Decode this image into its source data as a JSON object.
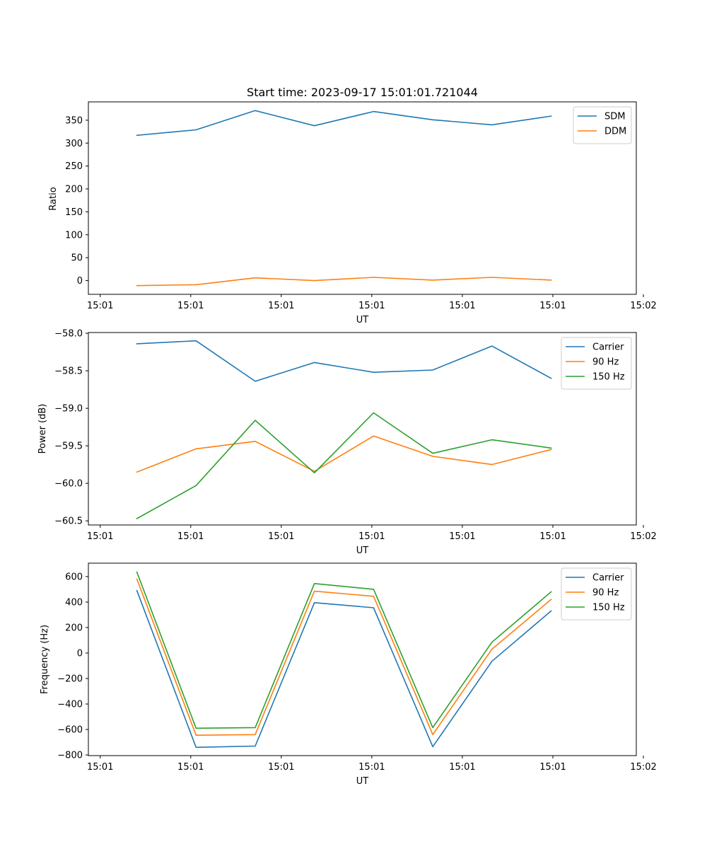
{
  "chart_data": [
    {
      "type": "line",
      "title": "Start time: 2023-09-17 15:01:01.721044",
      "xlabel": "UT",
      "ylabel": "Ratio",
      "x": [
        1,
        2,
        3,
        4,
        5,
        6,
        7,
        8
      ],
      "xlim": [
        0.18,
        9.44
      ],
      "xticks": [
        0.38,
        1.91,
        3.44,
        4.97,
        6.5,
        8.03,
        9.56
      ],
      "xtick_labels": [
        "15:01",
        "15:01",
        "15:01",
        "15:01",
        "15:01",
        "15:01",
        "15:02"
      ],
      "ylim": [
        -30,
        390
      ],
      "yticks": [
        0,
        50,
        100,
        150,
        200,
        250,
        300,
        350
      ],
      "ytick_labels": [
        "0",
        "50",
        "100",
        "150",
        "200",
        "250",
        "300",
        "350"
      ],
      "legend": "top-right",
      "series": [
        {
          "name": "SDM",
          "color": "#1f77b4",
          "values": [
            317,
            329,
            371,
            338,
            369,
            351,
            340,
            359
          ]
        },
        {
          "name": "DDM",
          "color": "#ff7f0e",
          "values": [
            -11,
            -9,
            6,
            0,
            7,
            1,
            7,
            1
          ]
        }
      ]
    },
    {
      "type": "line",
      "title": "",
      "xlabel": "UT",
      "ylabel": "Power (dB)",
      "x": [
        1,
        2,
        3,
        4,
        5,
        6,
        7,
        8
      ],
      "xlim": [
        0.18,
        9.44
      ],
      "xticks": [
        0.38,
        1.91,
        3.44,
        4.97,
        6.5,
        8.03,
        9.56
      ],
      "xtick_labels": [
        "15:01",
        "15:01",
        "15:01",
        "15:01",
        "15:01",
        "15:01",
        "15:02"
      ],
      "ylim": [
        -60.555,
        -57.99
      ],
      "yticks": [
        -60.5,
        -60.0,
        -59.5,
        -59.0,
        -58.5,
        -58.0
      ],
      "ytick_labels": [
        "−60.5",
        "−60.0",
        "−59.5",
        "−59.0",
        "−58.5",
        "−58.0"
      ],
      "legend": "top-right",
      "series": [
        {
          "name": "Carrier",
          "color": "#1f77b4",
          "values": [
            -58.14,
            -58.1,
            -58.64,
            -58.39,
            -58.52,
            -58.49,
            -58.17,
            -58.6
          ]
        },
        {
          "name": "90 Hz",
          "color": "#ff7f0e",
          "values": [
            -59.85,
            -59.54,
            -59.44,
            -59.84,
            -59.37,
            -59.64,
            -59.75,
            -59.55
          ]
        },
        {
          "name": "150 Hz",
          "color": "#2ca02c",
          "values": [
            -60.47,
            -60.03,
            -59.16,
            -59.86,
            -59.06,
            -59.6,
            -59.42,
            -59.53
          ]
        }
      ]
    },
    {
      "type": "line",
      "title": "",
      "xlabel": "UT",
      "ylabel": "Frequency (Hz)",
      "x": [
        1,
        2,
        3,
        4,
        5,
        6,
        7,
        8
      ],
      "xlim": [
        0.18,
        9.44
      ],
      "xticks": [
        0.38,
        1.91,
        3.44,
        4.97,
        6.5,
        8.03,
        9.56
      ],
      "xtick_labels": [
        "15:01",
        "15:01",
        "15:01",
        "15:01",
        "15:01",
        "15:01",
        "15:02"
      ],
      "ylim": [
        -805,
        705
      ],
      "yticks": [
        -800,
        -600,
        -400,
        -200,
        0,
        200,
        400,
        600
      ],
      "ytick_labels": [
        "−800",
        "−600",
        "−400",
        "−200",
        "0",
        "200",
        "400",
        "600"
      ],
      "legend": "top-right",
      "series": [
        {
          "name": "Carrier",
          "color": "#1f77b4",
          "values": [
            490,
            -740,
            -730,
            395,
            355,
            -735,
            -65,
            330
          ]
        },
        {
          "name": "90 Hz",
          "color": "#ff7f0e",
          "values": [
            580,
            -645,
            -640,
            485,
            445,
            -640,
            30,
            420
          ]
        },
        {
          "name": "150 Hz",
          "color": "#2ca02c",
          "values": [
            635,
            -590,
            -585,
            545,
            500,
            -585,
            85,
            480
          ]
        }
      ]
    }
  ]
}
